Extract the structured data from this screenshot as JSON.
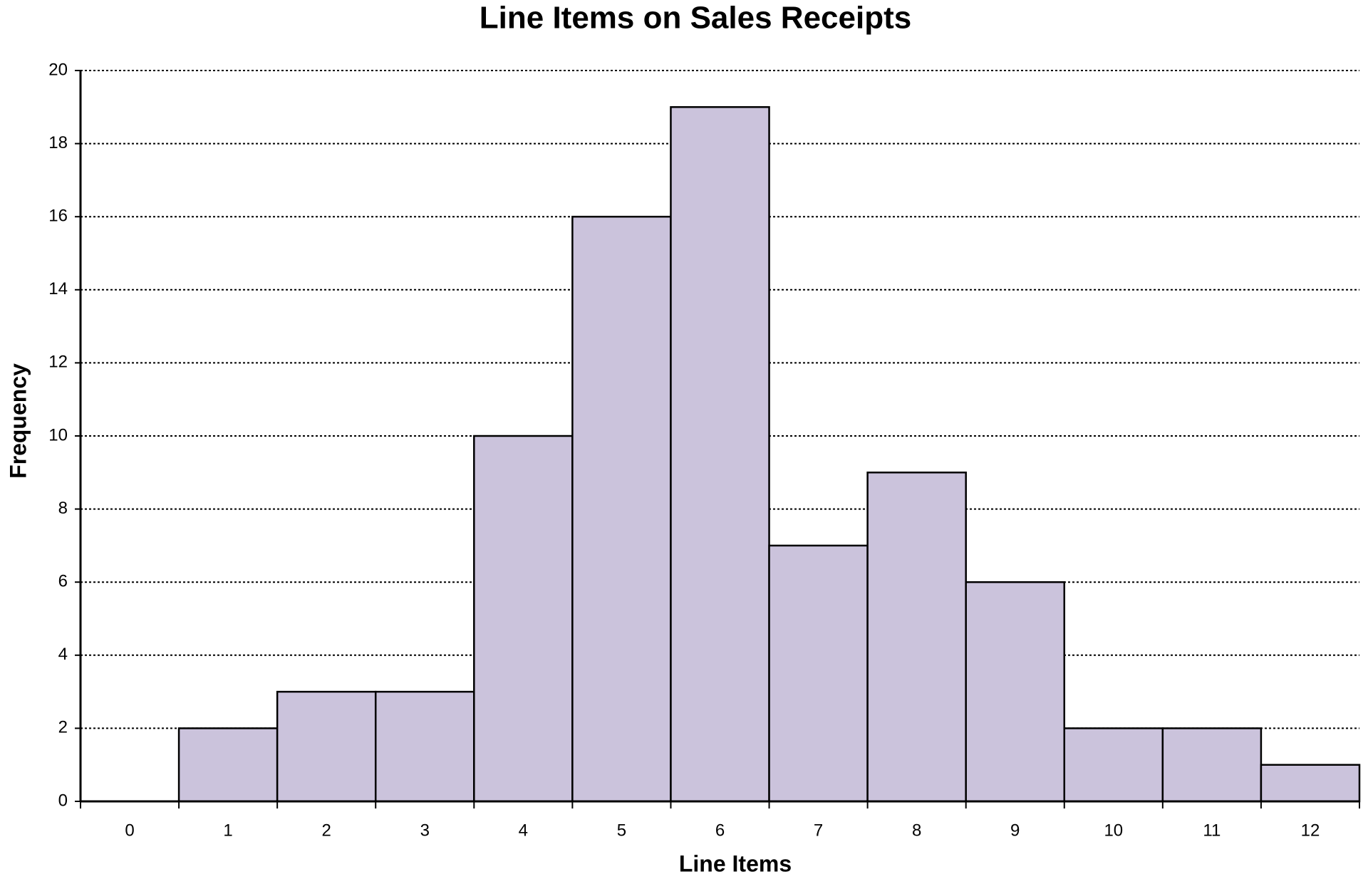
{
  "chart_data": {
    "type": "bar",
    "title": "Line Items on Sales Receipts",
    "x_label": "Line Items",
    "y_label": "Frequency",
    "categories": [
      0,
      1,
      2,
      3,
      4,
      5,
      6,
      7,
      8,
      9,
      10,
      11,
      12
    ],
    "values": [
      0,
      2,
      3,
      3,
      10,
      16,
      19,
      7,
      9,
      6,
      2,
      2,
      1
    ],
    "color": "#cbc3dc",
    "ylim": [
      0,
      20
    ],
    "yticks": [
      0,
      2,
      4,
      6,
      8,
      10,
      12,
      14,
      16,
      18,
      20
    ],
    "grid": true
  }
}
